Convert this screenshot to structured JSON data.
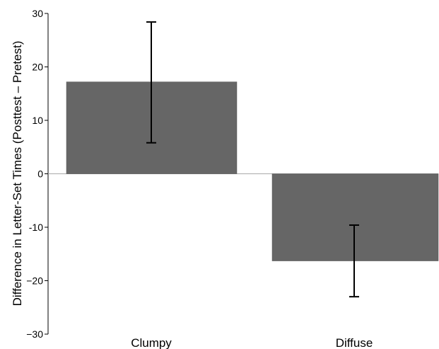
{
  "chart_data": {
    "type": "bar",
    "title": "",
    "xlabel": "",
    "ylabel": "Difference in Letter-Set Times (Posttest – Pretest)",
    "categories": [
      "Clumpy",
      "Diffuse"
    ],
    "values": [
      17.2,
      -16.3
    ],
    "error_bars": [
      {
        "low": 5.8,
        "high": 28.4
      },
      {
        "low": -23.0,
        "high": -9.6
      }
    ],
    "ylim": [
      -30,
      30
    ],
    "yticks": [
      30,
      20,
      10,
      0,
      -10,
      -20,
      -30
    ],
    "ytick_labels": [
      "30",
      "20",
      "10",
      "0",
      "-10",
      "−20",
      "−30"
    ],
    "grid": false,
    "bar_color": "#666666",
    "zero_line_color": "#aaaaaa"
  }
}
